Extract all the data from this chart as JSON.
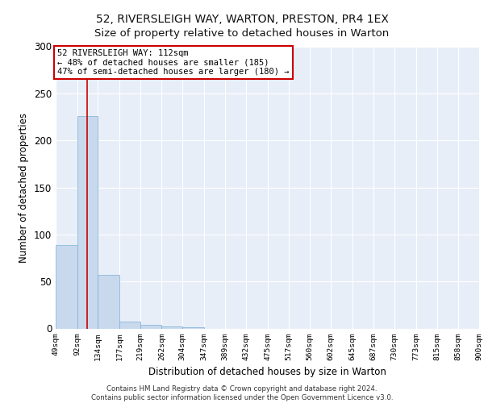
{
  "title_line1": "52, RIVERSLEIGH WAY, WARTON, PRESTON, PR4 1EX",
  "title_line2": "Size of property relative to detached houses in Warton",
  "xlabel": "Distribution of detached houses by size in Warton",
  "ylabel": "Number of detached properties",
  "footer_line1": "Contains HM Land Registry data © Crown copyright and database right 2024.",
  "footer_line2": "Contains public sector information licensed under the Open Government Licence v3.0.",
  "bar_edges": [
    49,
    92,
    134,
    177,
    219,
    262,
    304,
    347,
    389,
    432,
    475,
    517,
    560,
    602,
    645,
    687,
    730,
    773,
    815,
    858,
    900
  ],
  "bar_heights": [
    89,
    226,
    57,
    7,
    4,
    2,
    1,
    0,
    0,
    0,
    0,
    0,
    0,
    0,
    0,
    0,
    0,
    0,
    0,
    0
  ],
  "bar_color": "#c8d9ee",
  "bar_edgecolor": "#7aafd4",
  "property_size": 112,
  "vline_color": "#cc0000",
  "ylim": [
    0,
    300
  ],
  "annotation_text": "52 RIVERSLEIGH WAY: 112sqm\n← 48% of detached houses are smaller (185)\n47% of semi-detached houses are larger (180) →",
  "annotation_box_edgecolor": "#cc0000",
  "annotation_box_facecolor": "#ffffff",
  "background_color": "#e8eef8",
  "grid_color": "#ffffff",
  "title_fontsize": 10,
  "subtitle_fontsize": 9.5,
  "tick_labels": [
    "49sqm",
    "92sqm",
    "134sqm",
    "177sqm",
    "219sqm",
    "262sqm",
    "304sqm",
    "347sqm",
    "389sqm",
    "432sqm",
    "475sqm",
    "517sqm",
    "560sqm",
    "602sqm",
    "645sqm",
    "687sqm",
    "730sqm",
    "773sqm",
    "815sqm",
    "858sqm",
    "900sqm"
  ]
}
